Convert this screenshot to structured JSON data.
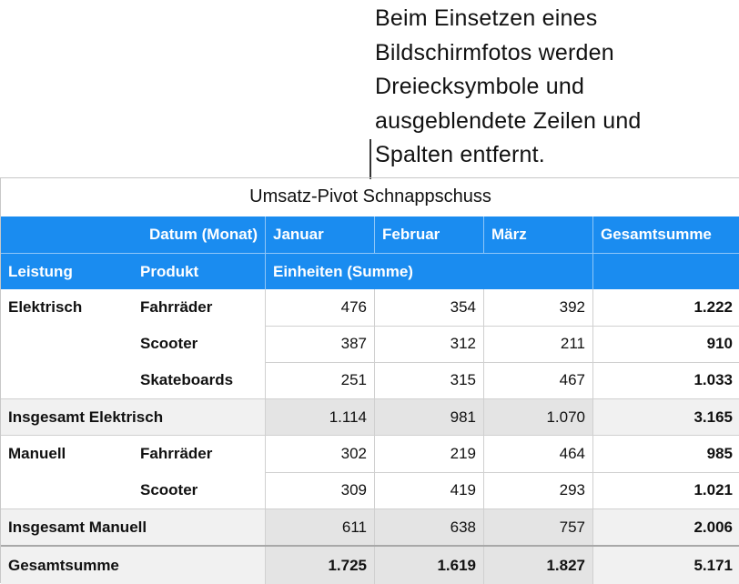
{
  "callout": {
    "text": "Beim Einsetzen eines\nBildschirmfotos werden\nDreiecksymbole und\nausgeblendete Zeilen und\nSpalten entfernt."
  },
  "table": {
    "title": "Umsatz-Pivot Schnappschuss",
    "header1": {
      "label": "Datum (Monat)",
      "months": [
        "Januar",
        "Februar",
        "März"
      ],
      "total": "Gesamtsumme"
    },
    "header2": {
      "col1": "Leistung",
      "col2": "Produkt",
      "measure": "Einheiten (Summe)"
    },
    "rows": [
      {
        "group": "Elektrisch",
        "product": "Fahrräder",
        "values": [
          "476",
          "354",
          "392"
        ],
        "total": "1.222"
      },
      {
        "group": "",
        "product": "Scooter",
        "values": [
          "387",
          "312",
          "211"
        ],
        "total": "910"
      },
      {
        "group": "",
        "product": "Skateboards",
        "values": [
          "251",
          "315",
          "467"
        ],
        "total": "1.033"
      },
      {
        "label": "Insgesamt Elektrisch",
        "values": [
          "1.114",
          "981",
          "1.070"
        ],
        "total": "3.165"
      },
      {
        "group": "Manuell",
        "product": "Fahrräder",
        "values": [
          "302",
          "219",
          "464"
        ],
        "total": "985"
      },
      {
        "group": "",
        "product": "Scooter",
        "values": [
          "309",
          "419",
          "293"
        ],
        "total": "1.021"
      },
      {
        "label": "Insgesamt Manuell",
        "values": [
          "611",
          "638",
          "757"
        ],
        "total": "2.006"
      },
      {
        "label": "Gesamtsumme",
        "values": [
          "1.725",
          "1.619",
          "1.827"
        ],
        "total": "5.171"
      }
    ]
  },
  "colors": {
    "header_blue": "#1a8cf0",
    "subtotal_bg": "#f1f1f1",
    "subtotal_num_bg": "#e4e4e4"
  }
}
